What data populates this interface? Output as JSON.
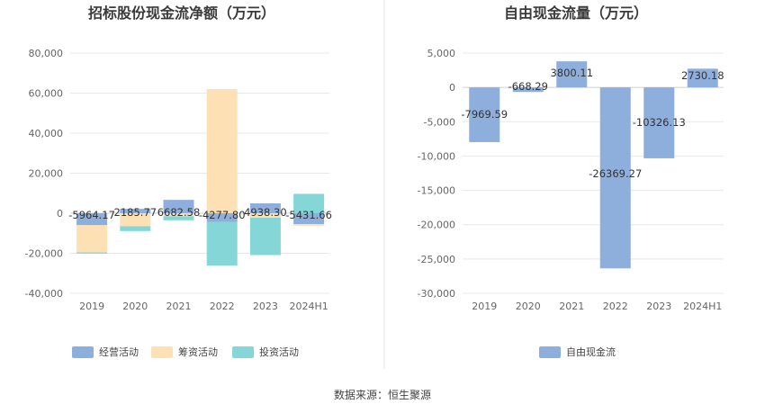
{
  "source": {
    "label": "数据来源：恒生聚源"
  },
  "chart_data": [
    {
      "type": "bar",
      "stacked": true,
      "title": "招标股份现金流净额（万元）",
      "categories": [
        "2019",
        "2020",
        "2021",
        "2022",
        "2023",
        "2024H1"
      ],
      "ylim": [
        -40000,
        80000
      ],
      "yticks": [
        80000,
        60000,
        40000,
        20000,
        0,
        -20000,
        -40000
      ],
      "ytick_labels": [
        "80,000",
        "60,000",
        "40,000",
        "20,000",
        "0",
        "-20,000",
        "-40,000"
      ],
      "legend_position": "bottom",
      "series": [
        {
          "name": "经营活动",
          "color": "#8eaedc",
          "values": [
            -5964.17,
            2185.77,
            6682.58,
            -4277.8,
            4938.3,
            -5431.66
          ]
        },
        {
          "name": "筹资活动",
          "color": "#fde0b4",
          "values": [
            -13600,
            -6500,
            -1500,
            62000,
            -2200,
            -800
          ]
        },
        {
          "name": "投资活动",
          "color": "#85d7d7",
          "values": [
            -600,
            -2400,
            -2000,
            -21800,
            -18700,
            9700
          ]
        }
      ],
      "data_labels": [
        "-5964.17",
        "2185.77",
        "6682.58",
        "-4277.80",
        "4938.30",
        "-5431.66"
      ]
    },
    {
      "type": "bar",
      "title": "自由现金流量（万元）",
      "categories": [
        "2019",
        "2020",
        "2021",
        "2022",
        "2023",
        "2024H1"
      ],
      "ylim": [
        -30000,
        5000
      ],
      "yticks": [
        5000,
        0,
        -5000,
        -10000,
        -15000,
        -20000,
        -25000,
        -30000
      ],
      "ytick_labels": [
        "5,000",
        "0",
        "-5,000",
        "-10,000",
        "-15,000",
        "-20,000",
        "-25,000",
        "-30,000"
      ],
      "legend_position": "bottom",
      "series": [
        {
          "name": "自由现金流",
          "color": "#8eaedc",
          "values": [
            -7969.59,
            -668.29,
            3800.11,
            -26369.27,
            -10326.13,
            2730.18
          ]
        }
      ],
      "data_labels": [
        "-7969.59",
        "-668.29",
        "3800.11",
        "-26369.27",
        "-10326.13",
        "2730.18"
      ]
    }
  ]
}
